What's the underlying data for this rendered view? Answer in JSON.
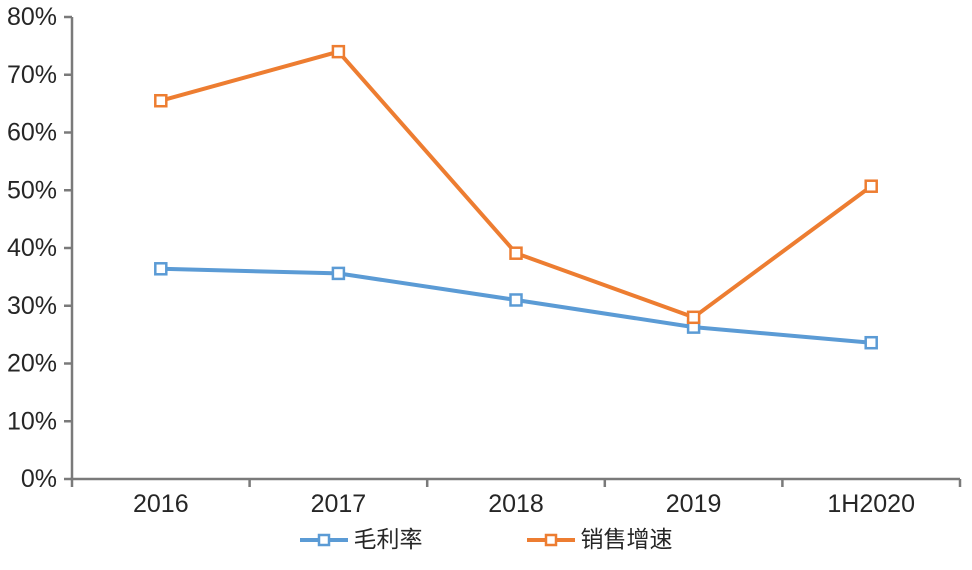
{
  "chart_data": {
    "type": "line",
    "categories": [
      "2016",
      "2017",
      "2018",
      "2019",
      "1H2020"
    ],
    "series": [
      {
        "name": "毛利率",
        "slug": "gross-margin",
        "color": "#5B9BD5",
        "values": [
          36.4,
          35.6,
          31.0,
          26.3,
          23.6
        ]
      },
      {
        "name": "销售增速",
        "slug": "sales-growth",
        "color": "#ED7D31",
        "values": [
          65.5,
          74.0,
          39.1,
          28.0,
          50.7
        ]
      }
    ],
    "title": "",
    "xlabel": "",
    "ylabel": "",
    "ylim": [
      0,
      80
    ],
    "y_tick_step": 10,
    "y_tick_labels": [
      "0%",
      "10%",
      "20%",
      "30%",
      "40%",
      "50%",
      "60%",
      "70%",
      "80%"
    ],
    "grid": false,
    "legend_position": "bottom",
    "marker": "hollow-square",
    "axis_color": "#7a7a7a",
    "text_color": "#262626",
    "background_color": "#ffffff"
  }
}
